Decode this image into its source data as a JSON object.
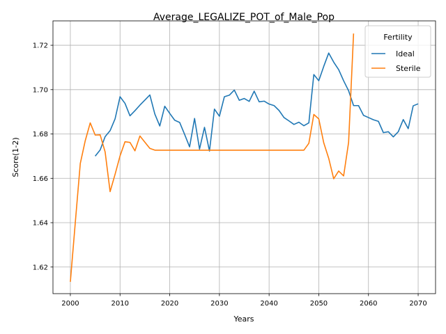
{
  "chart_data": {
    "type": "line",
    "title": "Average_LEGALIZE_POT_of_Male_Pop",
    "xlabel": "Years",
    "ylabel": "Score(1-2)",
    "xlim": [
      1996.5,
      2073.5
    ],
    "ylim": [
      1.608,
      1.731
    ],
    "xticks": [
      2000,
      2010,
      2020,
      2030,
      2040,
      2050,
      2060,
      2070
    ],
    "yticks": [
      1.62,
      1.64,
      1.66,
      1.68,
      1.7,
      1.72
    ],
    "ytick_labels": [
      "1.62",
      "1.64",
      "1.66",
      "1.68",
      "1.70",
      "1.72"
    ],
    "grid": true,
    "legend": {
      "title": "Fertility",
      "location": "upper-right"
    },
    "series": [
      {
        "name": "Ideal",
        "color": "#1f77b4",
        "x": [
          2005,
          2006,
          2007,
          2008,
          2009,
          2010,
          2011,
          2012,
          2013,
          2014,
          2015,
          2016,
          2017,
          2018,
          2019,
          2020,
          2021,
          2022,
          2023,
          2024,
          2025,
          2026,
          2027,
          2028,
          2029,
          2030,
          2031,
          2032,
          2033,
          2034,
          2035,
          2036,
          2037,
          2038,
          2039,
          2040,
          2041,
          2042,
          2043,
          2044,
          2045,
          2046,
          2047,
          2048,
          2049,
          2050,
          2051,
          2052,
          2053,
          2054,
          2055,
          2056,
          2057,
          2058,
          2059,
          2060,
          2061,
          2062,
          2063,
          2064,
          2065,
          2066,
          2067,
          2068,
          2069,
          2070
        ],
        "y": [
          1.67,
          1.6728,
          1.6788,
          1.6815,
          1.6868,
          1.6968,
          1.6938,
          1.6882,
          1.6905,
          1.693,
          1.6953,
          1.6976,
          1.689,
          1.6836,
          1.6925,
          1.6893,
          1.6862,
          1.6852,
          1.6798,
          1.6742,
          1.687,
          1.6732,
          1.683,
          1.6723,
          1.6912,
          1.688,
          1.6968,
          1.6975,
          1.6998,
          1.6952,
          1.696,
          1.6947,
          1.6993,
          1.6945,
          1.6948,
          1.6935,
          1.6928,
          1.6906,
          1.6874,
          1.6859,
          1.6843,
          1.6853,
          1.6837,
          1.685,
          1.7068,
          1.704,
          1.7105,
          1.7165,
          1.7124,
          1.709,
          1.704,
          1.6995,
          1.6928,
          1.6928,
          1.6884,
          1.6874,
          1.6864,
          1.6857,
          1.6806,
          1.681,
          1.6787,
          1.681,
          1.6865,
          1.6824,
          1.6927,
          1.6936
        ]
      },
      {
        "name": "Sterile",
        "color": "#ff7f0e",
        "x": [
          2000,
          2001,
          2002,
          2003,
          2004,
          2005,
          2006,
          2007,
          2008,
          2009,
          2010,
          2011,
          2012,
          2013,
          2014,
          2015,
          2016,
          2017,
          2018,
          2019,
          2020,
          2021,
          2022,
          2023,
          2024,
          2025,
          2026,
          2027,
          2028,
          2029,
          2030,
          2031,
          2032,
          2033,
          2034,
          2035,
          2036,
          2037,
          2038,
          2039,
          2040,
          2041,
          2042,
          2043,
          2044,
          2045,
          2046,
          2047,
          2048,
          2049,
          2050,
          2051,
          2052,
          2053,
          2054,
          2055,
          2056,
          2057
        ],
        "y": [
          1.6133,
          1.6402,
          1.6667,
          1.677,
          1.685,
          1.6795,
          1.6796,
          1.6719,
          1.654,
          1.6618,
          1.6701,
          1.6765,
          1.6762,
          1.6724,
          1.6791,
          1.6763,
          1.6735,
          1.6727,
          1.6727,
          1.6727,
          1.6727,
          1.6727,
          1.6727,
          1.6727,
          1.6727,
          1.6727,
          1.6727,
          1.6727,
          1.6727,
          1.6727,
          1.6727,
          1.6727,
          1.6727,
          1.6727,
          1.6727,
          1.6727,
          1.6727,
          1.6727,
          1.6727,
          1.6727,
          1.6727,
          1.6727,
          1.6727,
          1.6727,
          1.6727,
          1.6727,
          1.6727,
          1.6727,
          1.6758,
          1.6888,
          1.6868,
          1.676,
          1.669,
          1.6598,
          1.6633,
          1.6611,
          1.6762,
          1.7253
        ]
      }
    ]
  }
}
